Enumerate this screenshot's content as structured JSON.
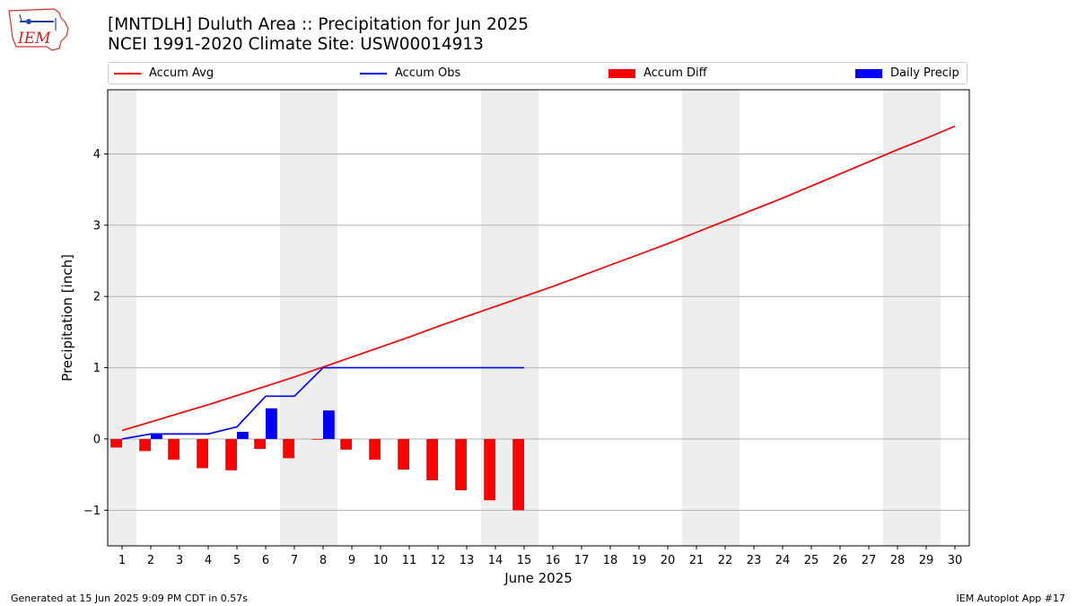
{
  "title_line1": "[MNTDLH] Duluth Area :: Precipitation for Jun 2025",
  "title_line2": "NCEI 1991-2020 Climate Site: USW00014913",
  "footer_left": "Generated at 15 Jun 2025 9:09 PM CDT in 0.57s",
  "footer_right": "IEM Autoplot App #17",
  "logo_text": "IEM",
  "legend": {
    "accum_avg": "Accum Avg",
    "accum_obs": "Accum Obs",
    "accum_diff": "Accum Diff",
    "daily_precip": "Daily Precip"
  },
  "colors": {
    "avg": "#ff0000",
    "obs": "#0000ff",
    "diff": "#ff0000",
    "daily": "#0000ff",
    "weekend": "#eeeeee",
    "grid": "#b0b0b0"
  },
  "chart_data": {
    "type": "bar",
    "xlabel": "June 2025",
    "ylabel": "Precipitation [inch]",
    "ylim": [
      -1.5,
      4.9
    ],
    "yticks": [
      -1,
      0,
      1,
      2,
      3,
      4
    ],
    "ytick_labels": [
      "−1",
      "0",
      "1",
      "2",
      "3",
      "4"
    ],
    "days": [
      1,
      2,
      3,
      4,
      5,
      6,
      7,
      8,
      9,
      10,
      11,
      12,
      13,
      14,
      15,
      16,
      17,
      18,
      19,
      20,
      21,
      22,
      23,
      24,
      25,
      26,
      27,
      28,
      29,
      30
    ],
    "weekend_days": [
      1,
      7,
      8,
      14,
      15,
      21,
      22,
      28,
      29
    ],
    "grid": "horizontal",
    "legend_position": "top",
    "series": [
      {
        "name": "Accum Avg",
        "kind": "line",
        "values": [
          0.12,
          0.24,
          0.36,
          0.48,
          0.61,
          0.74,
          0.87,
          1.01,
          1.15,
          1.29,
          1.43,
          1.58,
          1.72,
          1.86,
          2.0,
          2.14,
          2.29,
          2.44,
          2.59,
          2.74,
          2.9,
          3.06,
          3.22,
          3.38,
          3.55,
          3.72,
          3.89,
          4.06,
          4.22,
          4.39
        ]
      },
      {
        "name": "Accum Obs",
        "kind": "line",
        "values": [
          0.0,
          0.07,
          0.07,
          0.07,
          0.17,
          0.6,
          0.6,
          1.0,
          1.0,
          1.0,
          1.0,
          1.0,
          1.0,
          1.0,
          1.0
        ]
      },
      {
        "name": "Accum Diff",
        "kind": "bar",
        "values": [
          -0.12,
          -0.17,
          -0.29,
          -0.41,
          -0.44,
          -0.14,
          -0.27,
          -0.01,
          -0.15,
          -0.29,
          -0.43,
          -0.58,
          -0.72,
          -0.86,
          -1.0
        ]
      },
      {
        "name": "Daily Precip",
        "kind": "bar",
        "values": [
          0.0,
          0.07,
          0.0,
          0.0,
          0.1,
          0.43,
          0.0,
          0.4,
          0.0,
          0.0,
          0.0,
          0.0,
          0.0,
          0.0,
          0.0
        ]
      }
    ]
  }
}
